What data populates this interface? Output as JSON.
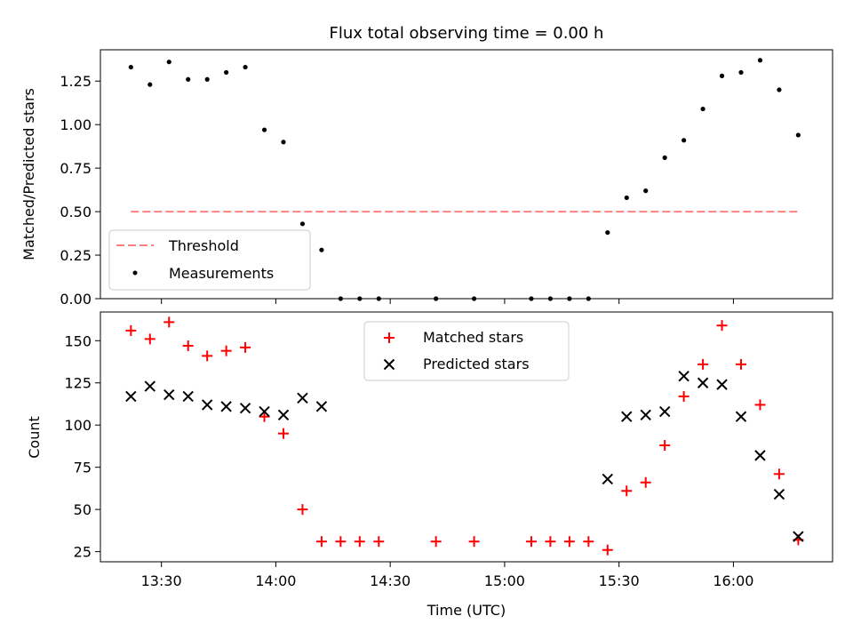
{
  "figure": {
    "title": "Flux total observing time = 0.00 h",
    "xlabel": "Time (UTC)"
  },
  "colors": {
    "threshold": "#ff8080",
    "measurements": "#000000",
    "matched": "#ff0000",
    "predicted": "#000000"
  },
  "chart_data": [
    {
      "type": "scatter",
      "ylabel": "Matched/Predicted stars",
      "ylim": [
        0,
        1.43
      ],
      "yticks": [
        "0.00",
        "0.25",
        "0.50",
        "0.75",
        "1.00",
        "1.25"
      ],
      "xlim_minutes": [
        794,
        986
      ],
      "legend": {
        "placement": "lower-left",
        "entries": [
          "Threshold",
          "Measurements"
        ]
      },
      "threshold": {
        "name": "Threshold",
        "y": 0.5,
        "x_start": "13:22",
        "x_end": "16:17"
      },
      "measurements": {
        "name": "Measurements",
        "x": [
          "13:22",
          "13:27",
          "13:32",
          "13:37",
          "13:42",
          "13:47",
          "13:52",
          "13:57",
          "14:02",
          "14:07",
          "14:12",
          "14:17",
          "14:22",
          "14:27",
          "14:42",
          "14:52",
          "15:07",
          "15:12",
          "15:17",
          "15:22",
          "15:27",
          "15:32",
          "15:37",
          "15:42",
          "15:47",
          "15:52",
          "15:57",
          "16:02",
          "16:07",
          "16:12",
          "16:17"
        ],
        "y": [
          1.33,
          1.23,
          1.36,
          1.26,
          1.26,
          1.3,
          1.33,
          0.97,
          0.9,
          0.43,
          0.28,
          0,
          0,
          0,
          0,
          0,
          0,
          0,
          0,
          0,
          0.38,
          0.58,
          0.62,
          0.81,
          0.91,
          1.09,
          1.28,
          1.3,
          1.37,
          1.2,
          0.94
        ]
      }
    },
    {
      "type": "scatter",
      "ylabel": "Count",
      "ylim": [
        19,
        167
      ],
      "yticks": [
        "25",
        "50",
        "75",
        "100",
        "125",
        "150"
      ],
      "xticks": [
        "13:30",
        "14:00",
        "14:30",
        "15:00",
        "15:30",
        "16:00"
      ],
      "xlim_minutes": [
        794,
        986
      ],
      "legend": {
        "placement": "upper-center",
        "entries": [
          "Matched stars",
          "Predicted stars"
        ]
      },
      "matched": {
        "name": "Matched stars",
        "x": [
          "13:22",
          "13:27",
          "13:32",
          "13:37",
          "13:42",
          "13:47",
          "13:52",
          "13:57",
          "14:02",
          "14:07",
          "14:12",
          "14:17",
          "14:22",
          "14:27",
          "14:42",
          "14:52",
          "15:07",
          "15:12",
          "15:17",
          "15:22",
          "15:27",
          "15:32",
          "15:37",
          "15:42",
          "15:47",
          "15:52",
          "15:57",
          "16:02",
          "16:07",
          "16:12",
          "16:17"
        ],
        "y": [
          156,
          151,
          161,
          147,
          141,
          144,
          146,
          105,
          95,
          50,
          31,
          31,
          31,
          31,
          31,
          31,
          31,
          31,
          31,
          31,
          26,
          61,
          66,
          88,
          117,
          136,
          159,
          136,
          112,
          71,
          32
        ]
      },
      "predicted": {
        "name": "Predicted stars",
        "x": [
          "13:22",
          "13:27",
          "13:32",
          "13:37",
          "13:42",
          "13:47",
          "13:52",
          "13:57",
          "14:02",
          "14:07",
          "14:12",
          "15:27",
          "15:32",
          "15:37",
          "15:42",
          "15:47",
          "15:52",
          "15:57",
          "16:02",
          "16:07",
          "16:12",
          "16:17"
        ],
        "y": [
          117,
          123,
          118,
          117,
          112,
          111,
          110,
          108,
          106,
          116,
          111,
          68,
          105,
          106,
          108,
          129,
          125,
          124,
          105,
          82,
          59,
          34
        ]
      }
    }
  ]
}
